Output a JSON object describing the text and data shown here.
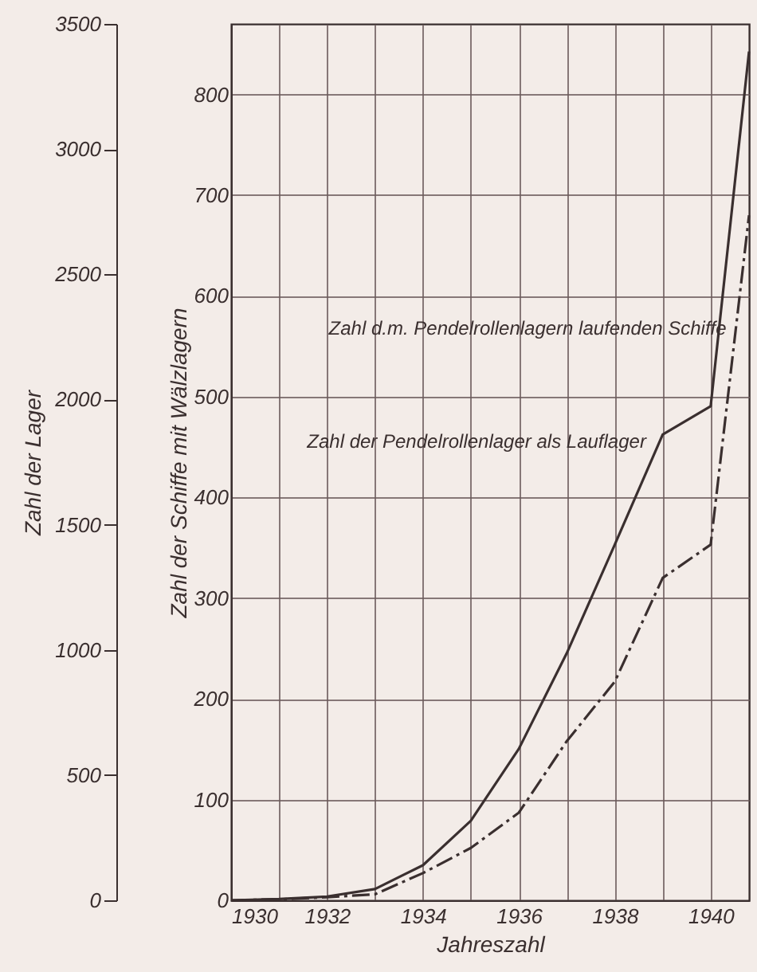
{
  "chart_data": {
    "type": "line",
    "xlabel": "Jahreszahl",
    "ylabel": "Zahl der Schiffe mit Wälzlagern",
    "y2label": "Zahl der Lager",
    "xlim": [
      1930,
      1940.8
    ],
    "xticks": [
      1930,
      {
        "value": 1931,
        "label": null
      },
      1932,
      {
        "value": 1933,
        "label": null
      },
      1934,
      {
        "value": 1935,
        "label": null
      },
      1936,
      {
        "value": 1937,
        "label": null
      },
      1938,
      {
        "value": 1939,
        "label": null
      },
      1940
    ],
    "ylim": [
      0,
      870
    ],
    "yticks": [
      0,
      100,
      200,
      300,
      400,
      500,
      600,
      700,
      800
    ],
    "y2lim": [
      0,
      3500
    ],
    "y2ticks": [
      0,
      500,
      1000,
      1500,
      2000,
      2500,
      3000,
      3500
    ],
    "grid": true,
    "marker": "none",
    "series": [
      {
        "name": "Zahl d.m. Pendelrollenlagern laufenden Schiffe",
        "color": "#3a2f2f",
        "line_style": "dashed",
        "x": [
          1930,
          1931,
          1932,
          1933,
          1934,
          1935,
          1936,
          1937,
          1938,
          1939,
          1940,
          1940.8
        ],
        "values": [
          0,
          1,
          3,
          6,
          27,
          52,
          87,
          158,
          217,
          320,
          353,
          680
        ]
      },
      {
        "name": "Zahl der Pendelrollenlager als Lauflager",
        "color": "#3a2f2f",
        "line_style": "solid",
        "axis": "y2",
        "x": [
          1930,
          1931,
          1932,
          1933,
          1934,
          1935,
          1936,
          1937,
          1938,
          1939,
          1940,
          1940.8
        ],
        "values": [
          0,
          5,
          15,
          45,
          140,
          318,
          605,
          987,
          1420,
          1860,
          1973,
          3390
        ]
      }
    ]
  }
}
